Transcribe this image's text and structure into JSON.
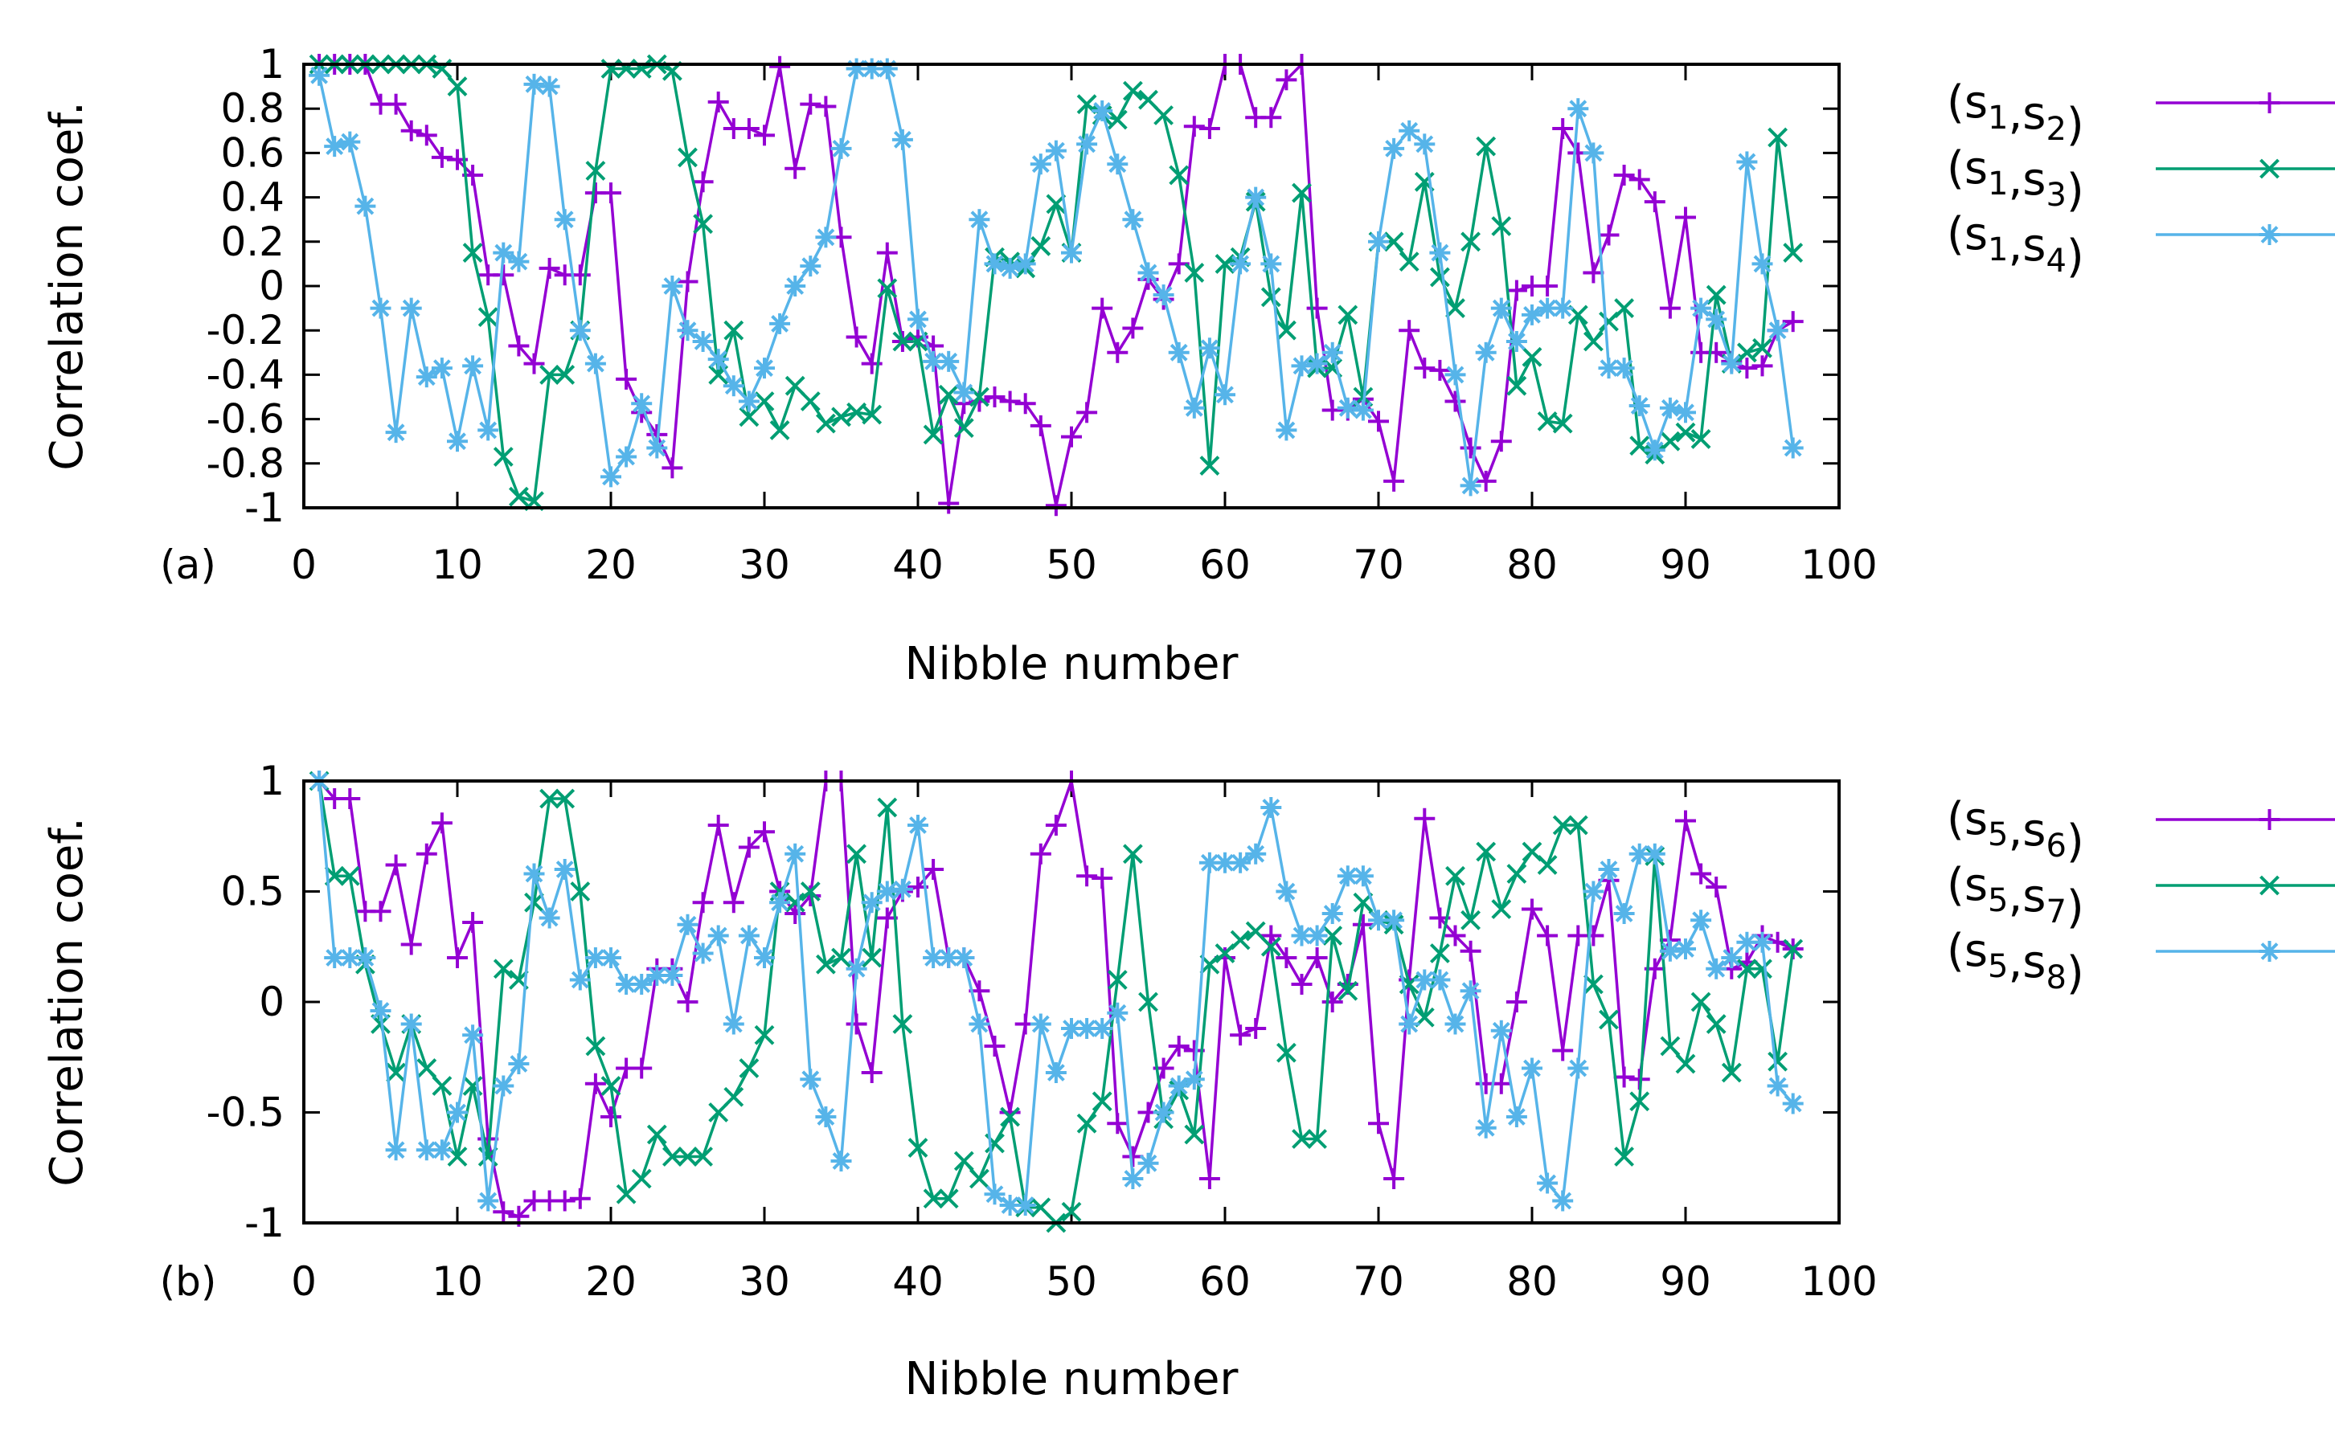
{
  "chart_data": [
    {
      "type": "line",
      "panel_label": "(a)",
      "xlabel": "Nibble number",
      "ylabel": "Correlation coef.",
      "xlim": [
        0,
        100
      ],
      "ylim": [
        -1,
        1
      ],
      "xticks": [
        0,
        10,
        20,
        30,
        40,
        50,
        60,
        70,
        80,
        90,
        100
      ],
      "yticks": [
        -1,
        -0.8,
        -0.6,
        -0.4,
        -0.2,
        0,
        0.2,
        0.4,
        0.6,
        0.8,
        1
      ],
      "ytick_labels": [
        "-1",
        "-0.8",
        "-0.6",
        "-0.4",
        "-0.2",
        "0",
        "0.2",
        "0.4",
        "0.6",
        "0.8",
        "1"
      ],
      "legend_position": "right",
      "x": [
        1,
        2,
        3,
        4,
        5,
        6,
        7,
        8,
        9,
        10,
        11,
        12,
        13,
        14,
        15,
        16,
        17,
        18,
        19,
        20,
        21,
        22,
        23,
        24,
        25,
        26,
        27,
        28,
        29,
        30,
        31,
        32,
        33,
        34,
        35,
        36,
        37,
        38,
        39,
        40,
        41,
        42,
        43,
        44,
        45,
        46,
        47,
        48,
        49,
        50,
        51,
        52,
        53,
        54,
        55,
        56,
        57,
        58,
        59,
        60,
        61,
        62,
        63,
        64,
        65,
        66,
        67,
        68,
        69,
        70,
        71,
        72,
        73,
        74,
        75,
        76,
        77,
        78,
        79,
        80,
        81,
        82,
        83,
        84,
        85,
        86,
        87,
        88,
        89,
        90,
        91,
        92,
        93,
        94,
        95,
        96,
        97
      ],
      "series": [
        {
          "name": "(s1,s2)",
          "sub_a": "1",
          "sub_b": "2",
          "color": "#9400d3",
          "marker": "plus",
          "values": [
            1.0,
            1.0,
            1.0,
            1.0,
            0.82,
            0.82,
            0.7,
            0.68,
            0.58,
            0.57,
            0.5,
            0.05,
            0.05,
            -0.27,
            -0.35,
            0.08,
            0.05,
            0.05,
            0.42,
            0.42,
            -0.42,
            -0.57,
            -0.67,
            -0.82,
            0.02,
            0.47,
            0.83,
            0.71,
            0.71,
            0.68,
            0.99,
            0.53,
            0.82,
            0.81,
            0.22,
            -0.23,
            -0.35,
            0.15,
            -0.25,
            -0.23,
            -0.27,
            -0.98,
            -0.53,
            -0.52,
            -0.5,
            -0.52,
            -0.53,
            -0.63,
            -0.99,
            -0.68,
            -0.57,
            -0.1,
            -0.3,
            -0.19,
            0.03,
            -0.06,
            0.1,
            0.72,
            0.71,
            1.0,
            1.0,
            0.76,
            0.76,
            0.93,
            1.0,
            -0.1,
            -0.56,
            -0.56,
            -0.51,
            -0.61,
            -0.88,
            -0.2,
            -0.37,
            -0.38,
            -0.52,
            -0.73,
            -0.88,
            -0.7,
            -0.02,
            0.0,
            0.0,
            0.71,
            0.6,
            0.06,
            0.23,
            0.5,
            0.48,
            0.38,
            -0.1,
            0.31,
            -0.3,
            -0.3,
            -0.34,
            -0.37,
            -0.36,
            -0.2,
            -0.16
          ]
        },
        {
          "name": "(s1,s3)",
          "sub_a": "1",
          "sub_b": "3",
          "color": "#009e73",
          "marker": "cross",
          "values": [
            1.0,
            1.0,
            1.0,
            1.0,
            1.0,
            1.0,
            1.0,
            1.0,
            0.98,
            0.9,
            0.15,
            -0.14,
            -0.77,
            -0.95,
            -0.97,
            -0.4,
            -0.4,
            -0.2,
            0.52,
            0.98,
            0.98,
            0.98,
            1.0,
            0.97,
            0.58,
            0.28,
            -0.4,
            -0.2,
            -0.59,
            -0.52,
            -0.65,
            -0.45,
            -0.52,
            -0.62,
            -0.59,
            -0.57,
            -0.58,
            -0.01,
            -0.25,
            -0.25,
            -0.67,
            -0.49,
            -0.64,
            -0.5,
            0.13,
            0.11,
            0.08,
            0.18,
            0.37,
            0.15,
            0.82,
            0.77,
            0.75,
            0.88,
            0.84,
            0.77,
            0.5,
            0.06,
            -0.81,
            0.1,
            0.13,
            0.38,
            -0.05,
            -0.2,
            0.42,
            -0.37,
            -0.37,
            -0.13,
            -0.5,
            0.2,
            0.2,
            0.11,
            0.47,
            0.04,
            -0.1,
            0.2,
            0.63,
            0.27,
            -0.45,
            -0.32,
            -0.61,
            -0.62,
            -0.13,
            -0.25,
            -0.16,
            -0.1,
            -0.72,
            -0.76,
            -0.7,
            -0.66,
            -0.69,
            -0.04,
            -0.35,
            -0.3,
            -0.28,
            0.67,
            0.15
          ]
        },
        {
          "name": "(s1,s4)",
          "sub_a": "1",
          "sub_b": "4",
          "color": "#56b4e9",
          "marker": "star",
          "values": [
            0.95,
            0.63,
            0.65,
            0.36,
            -0.1,
            -0.66,
            -0.1,
            -0.41,
            -0.37,
            -0.7,
            -0.36,
            -0.65,
            0.15,
            0.11,
            0.91,
            0.9,
            0.3,
            -0.2,
            -0.35,
            -0.86,
            -0.77,
            -0.53,
            -0.73,
            0.0,
            -0.2,
            -0.25,
            -0.33,
            -0.45,
            -0.52,
            -0.37,
            -0.17,
            0.0,
            0.09,
            0.22,
            0.62,
            0.98,
            0.98,
            0.98,
            0.66,
            -0.15,
            -0.34,
            -0.34,
            -0.48,
            0.3,
            0.1,
            0.08,
            0.1,
            0.55,
            0.61,
            0.15,
            0.64,
            0.79,
            0.55,
            0.3,
            0.06,
            -0.04,
            -0.3,
            -0.55,
            -0.28,
            -0.49,
            0.1,
            0.4,
            0.1,
            -0.65,
            -0.36,
            -0.35,
            -0.3,
            -0.55,
            -0.56,
            0.2,
            0.62,
            0.7,
            0.64,
            0.15,
            -0.4,
            -0.9,
            -0.3,
            -0.1,
            -0.25,
            -0.13,
            -0.1,
            -0.1,
            0.8,
            0.6,
            -0.37,
            -0.37,
            -0.54,
            -0.74,
            -0.55,
            -0.57,
            -0.1,
            -0.15,
            -0.35,
            0.56,
            0.1,
            -0.2,
            -0.73
          ]
        }
      ]
    },
    {
      "type": "line",
      "panel_label": "(b)",
      "xlabel": "Nibble number",
      "ylabel": "Correlation coef.",
      "xlim": [
        0,
        100
      ],
      "ylim": [
        -1,
        1
      ],
      "xticks": [
        0,
        10,
        20,
        30,
        40,
        50,
        60,
        70,
        80,
        90,
        100
      ],
      "yticks": [
        -1,
        -0.5,
        0,
        0.5,
        1
      ],
      "ytick_labels": [
        "-1",
        "-0.5",
        "0",
        "0.5",
        "1"
      ],
      "legend_position": "right",
      "x": [
        1,
        2,
        3,
        4,
        5,
        6,
        7,
        8,
        9,
        10,
        11,
        12,
        13,
        14,
        15,
        16,
        17,
        18,
        19,
        20,
        21,
        22,
        23,
        24,
        25,
        26,
        27,
        28,
        29,
        30,
        31,
        32,
        33,
        34,
        35,
        36,
        37,
        38,
        39,
        40,
        41,
        42,
        43,
        44,
        45,
        46,
        47,
        48,
        49,
        50,
        51,
        52,
        53,
        54,
        55,
        56,
        57,
        58,
        59,
        60,
        61,
        62,
        63,
        64,
        65,
        66,
        67,
        68,
        69,
        70,
        71,
        72,
        73,
        74,
        75,
        76,
        77,
        78,
        79,
        80,
        81,
        82,
        83,
        84,
        85,
        86,
        87,
        88,
        89,
        90,
        91,
        92,
        93,
        94,
        95,
        96,
        97
      ],
      "series": [
        {
          "name": "(s5,s6)",
          "sub_a": "5",
          "sub_b": "6",
          "color": "#9400d3",
          "marker": "plus",
          "values": [
            1.0,
            0.92,
            0.92,
            0.41,
            0.41,
            0.62,
            0.26,
            0.67,
            0.81,
            0.2,
            0.36,
            -0.62,
            -0.95,
            -0.97,
            -0.9,
            -0.9,
            -0.9,
            -0.89,
            -0.37,
            -0.52,
            -0.3,
            -0.3,
            0.15,
            0.15,
            0.0,
            0.45,
            0.8,
            0.45,
            0.7,
            0.77,
            0.5,
            0.4,
            0.48,
            1.0,
            1.0,
            -0.1,
            -0.32,
            0.38,
            0.5,
            0.52,
            0.6,
            0.2,
            0.2,
            0.05,
            -0.2,
            -0.5,
            -0.1,
            0.67,
            0.8,
            1.0,
            0.57,
            0.56,
            -0.55,
            -0.7,
            -0.5,
            -0.3,
            -0.2,
            -0.22,
            -0.8,
            0.2,
            -0.15,
            -0.12,
            0.3,
            0.2,
            0.08,
            0.2,
            0.0,
            0.08,
            0.35,
            -0.55,
            -0.8,
            0.1,
            0.83,
            0.38,
            0.3,
            0.23,
            -0.37,
            -0.37,
            0.0,
            0.42,
            0.3,
            -0.22,
            0.3,
            0.3,
            0.55,
            -0.34,
            -0.35,
            0.15,
            0.28,
            0.82,
            0.58,
            0.52,
            0.15,
            0.18,
            0.3,
            0.27,
            0.24
          ]
        },
        {
          "name": "(s5,s7)",
          "sub_a": "5",
          "sub_b": "7",
          "color": "#009e73",
          "marker": "cross",
          "values": [
            1.0,
            0.57,
            0.57,
            0.17,
            -0.1,
            -0.32,
            -0.1,
            -0.3,
            -0.38,
            -0.7,
            -0.38,
            -0.7,
            0.15,
            0.1,
            0.45,
            0.92,
            0.92,
            0.5,
            -0.2,
            -0.38,
            -0.87,
            -0.8,
            -0.6,
            -0.7,
            -0.7,
            -0.7,
            -0.5,
            -0.43,
            -0.3,
            -0.15,
            0.5,
            0.45,
            0.5,
            0.17,
            0.2,
            0.67,
            0.2,
            0.88,
            -0.1,
            -0.66,
            -0.89,
            -0.89,
            -0.72,
            -0.8,
            -0.64,
            -0.52,
            -0.93,
            -0.93,
            -1.0,
            -0.95,
            -0.55,
            -0.45,
            0.1,
            0.67,
            0.0,
            -0.53,
            -0.4,
            -0.6,
            0.17,
            0.22,
            0.28,
            0.32,
            0.25,
            -0.23,
            -0.62,
            -0.62,
            0.3,
            0.05,
            0.45,
            0.37,
            0.35,
            0.08,
            -0.07,
            0.22,
            0.57,
            0.37,
            0.68,
            0.42,
            0.58,
            0.68,
            0.62,
            0.8,
            0.8,
            0.08,
            -0.08,
            -0.7,
            -0.45,
            0.66,
            -0.2,
            -0.28,
            0.0,
            -0.1,
            -0.32,
            0.15,
            0.15,
            -0.27,
            0.24
          ]
        },
        {
          "name": "(s5,s8)",
          "sub_a": "5",
          "sub_b": "8",
          "color": "#56b4e9",
          "marker": "star",
          "values": [
            1.0,
            0.2,
            0.2,
            0.2,
            -0.04,
            -0.67,
            -0.1,
            -0.67,
            -0.67,
            -0.5,
            -0.15,
            -0.9,
            -0.38,
            -0.28,
            0.58,
            0.38,
            0.6,
            0.1,
            0.2,
            0.2,
            0.08,
            0.08,
            0.12,
            0.12,
            0.35,
            0.22,
            0.3,
            -0.1,
            0.3,
            0.2,
            0.45,
            0.67,
            -0.35,
            -0.52,
            -0.72,
            0.15,
            0.45,
            0.5,
            0.51,
            0.8,
            0.2,
            0.2,
            0.2,
            -0.1,
            -0.87,
            -0.92,
            -0.92,
            -0.1,
            -0.32,
            -0.12,
            -0.12,
            -0.12,
            -0.05,
            -0.8,
            -0.73,
            -0.5,
            -0.38,
            -0.35,
            0.63,
            0.63,
            0.63,
            0.67,
            0.88,
            0.5,
            0.3,
            0.3,
            0.4,
            0.57,
            0.57,
            0.37,
            0.37,
            -0.1,
            0.1,
            0.1,
            -0.1,
            0.05,
            -0.57,
            -0.13,
            -0.52,
            -0.3,
            -0.82,
            -0.9,
            -0.3,
            0.5,
            0.6,
            0.4,
            0.67,
            0.67,
            0.23,
            0.24,
            0.37,
            0.15,
            0.2,
            0.27,
            0.27,
            -0.38,
            -0.46
          ]
        }
      ]
    }
  ]
}
